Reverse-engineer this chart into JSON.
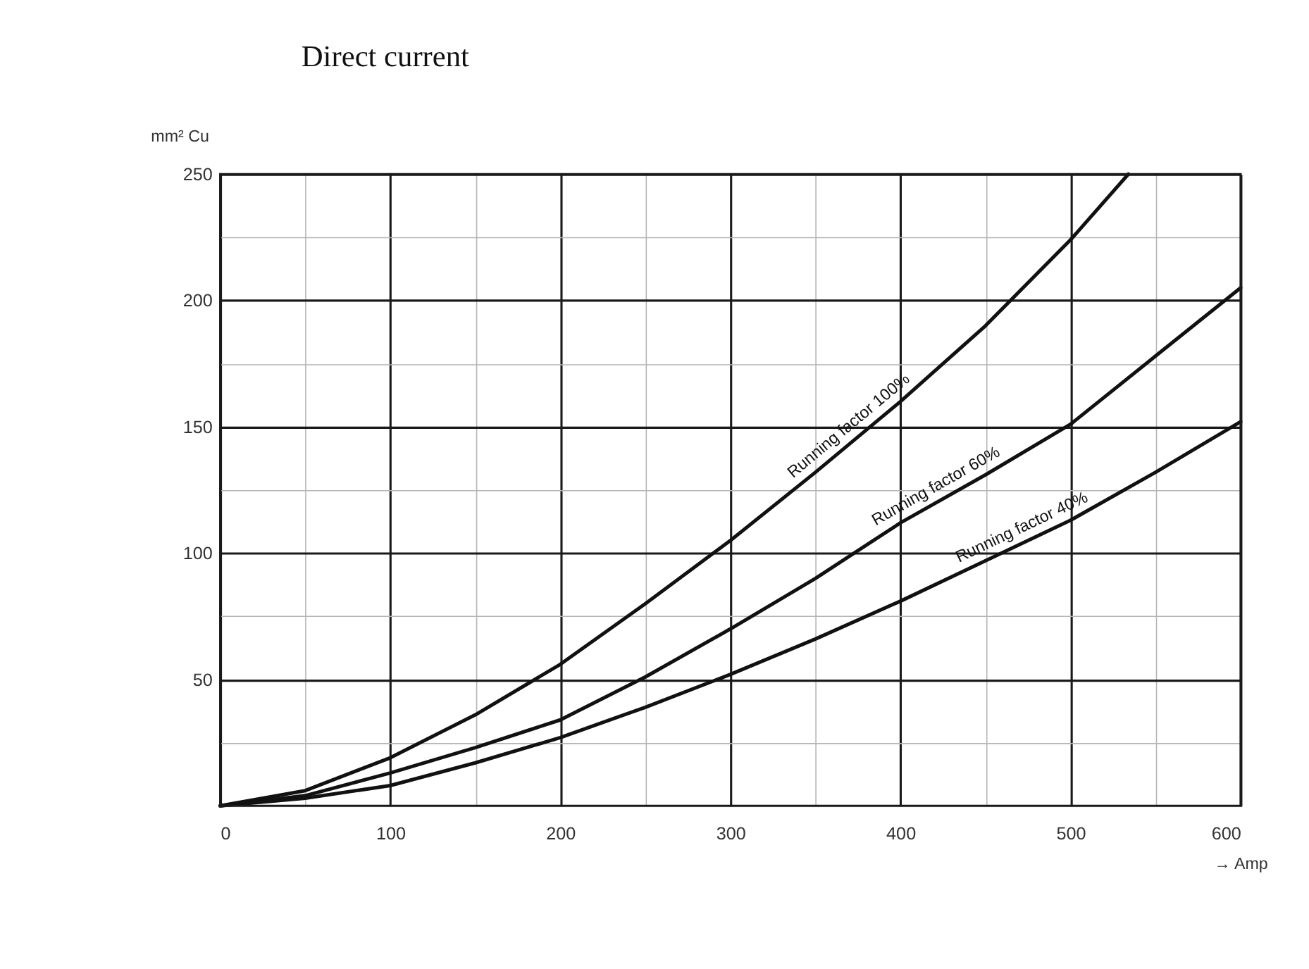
{
  "chart_data": {
    "type": "line",
    "title": "Direct current",
    "xlabel": "→ Amp",
    "ylabel": "mm² Cu",
    "x": [
      0,
      50,
      100,
      150,
      200,
      250,
      300,
      350,
      400,
      450,
      500,
      550,
      600
    ],
    "series": [
      {
        "name": "Running factor 100%",
        "color": "#111111",
        "x": [
          0,
          50,
          100,
          150,
          200,
          250,
          300,
          350,
          400,
          450,
          500,
          534
        ],
        "values": [
          0,
          6,
          19,
          36,
          56,
          80,
          105,
          132,
          160,
          190,
          224,
          250
        ]
      },
      {
        "name": "Running factor 60%",
        "color": "#111111",
        "values": [
          0,
          4,
          13,
          23,
          34,
          51,
          70,
          90,
          112,
          131,
          151,
          178,
          205
        ]
      },
      {
        "name": "Running factor 40%",
        "color": "#111111",
        "values": [
          0,
          3,
          8,
          17,
          27,
          39,
          52,
          66,
          81,
          97,
          113,
          132,
          152
        ]
      }
    ],
    "xlim": [
      0,
      600
    ],
    "ylim": [
      0,
      250
    ],
    "xticks": [
      0,
      {
        "value": 50,
        "label": null
      },
      100,
      {
        "value": 150,
        "label": null
      },
      200,
      {
        "value": 250,
        "label": null
      },
      300,
      {
        "value": 350,
        "label": null
      },
      400,
      {
        "value": 450,
        "label": null
      },
      500,
      {
        "value": 550,
        "label": null
      },
      600
    ],
    "yticks": [
      {
        "value": 25,
        "label": null
      },
      50,
      {
        "value": 75,
        "label": null
      },
      100,
      {
        "value": 125,
        "label": null
      },
      150,
      {
        "value": 175,
        "label": null
      },
      200,
      {
        "value": 225,
        "label": null
      },
      250
    ],
    "grid": true,
    "legend": false,
    "marker": "none",
    "line_style": "solid"
  }
}
